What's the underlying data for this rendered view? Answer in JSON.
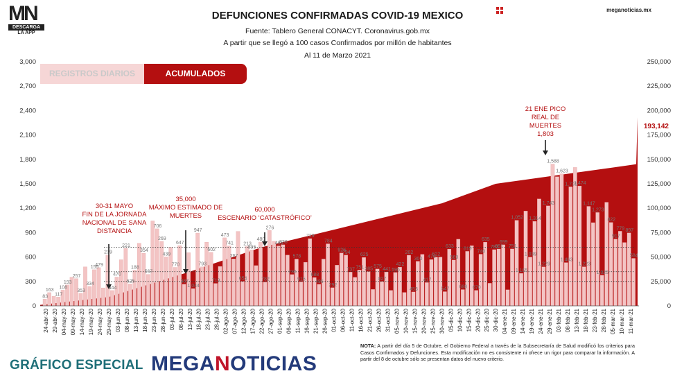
{
  "logo": {
    "mark_m": "M",
    "mark_n": "N",
    "sub": "DESCARGA",
    "app": "LA APP"
  },
  "site": "meganoticias.mx",
  "header": {
    "title": "DEFUNCIONES CONFIRMADAS COVID-19 MEXICO",
    "source": "Fuente: Tablero General CONACYT. Coronavirus.gob.mx",
    "criterion": "A partir que se llegó a 100 casos Confirmados por millón de habitantes",
    "date": "Al 11 de Marzo 2021"
  },
  "tabs": {
    "daily": "REGISTROS DIARIOS",
    "accumulated": "ACUMULADOS"
  },
  "colors": {
    "bars": "#f3c4c4",
    "bar_edge": "#e4a3a3",
    "accumulated": "#b40f10",
    "annotation": "#b40f10",
    "tab_daily_bg": "#f6d6d6"
  },
  "chart_data": {
    "type": "bar",
    "title": "DEFUNCIONES CONFIRMADAS COVID-19 MEXICO",
    "left_axis": {
      "ylim": [
        0,
        3000
      ],
      "ticks": [
        "0",
        "300",
        "600",
        "900",
        "1,200",
        "1,500",
        "1,800",
        "2,100",
        "2,400",
        "2,700",
        "3,000"
      ]
    },
    "right_axis": {
      "ylim": [
        0,
        250000
      ],
      "ticks": [
        "0",
        "25,000",
        "50,000",
        "75,000",
        "100,000",
        "125,000",
        "150,000",
        "175,000",
        "200,000",
        "225,000",
        "250,000"
      ]
    },
    "x_ticks": [
      "24-abr-20",
      "29-abr-20",
      "04-may-20",
      "09-may-20",
      "14-may-20",
      "19-may-20",
      "24-may-20",
      "29-may-20",
      "03-jun-20",
      "08-jun-20",
      "13-jun-20",
      "18-jun-20",
      "23-jun-20",
      "28-jun-20",
      "03-jul-20",
      "08-jul-20",
      "13-jul-20",
      "18-jul-20",
      "23-jul-20",
      "28-jul-20",
      "02-ago-20",
      "07-ago-20",
      "12-ago-20",
      "17-ago-20",
      "22-ago-20",
      "27-ago-20",
      "01-sep-20",
      "06-sep-20",
      "11-sep-20",
      "16-sep-20",
      "21-sep-20",
      "26-sep-20",
      "01-oct-20",
      "06-oct-20",
      "11-oct-20",
      "16-oct-20",
      "21-oct-20",
      "26-oct-20",
      "31-oct-20",
      "05-nov-20",
      "10-nov-20",
      "15-nov-20",
      "20-nov-20",
      "25-nov-20",
      "30-nov-20",
      "05-dic-20",
      "10-dic-20",
      "15-dic-20",
      "20-dic-20",
      "25-dic-20",
      "30-dic-20",
      "04-ene-21",
      "09-ene-21",
      "14-ene-21",
      "19-ene-21",
      "24-ene-21",
      "29-ene-21",
      "03-feb-21",
      "08-feb-21",
      "13-feb-21",
      "18-feb-21",
      "23-feb-21",
      "28-feb-21",
      "05-mar-21",
      "10-mar-21",
      "11-mar-21"
    ],
    "daily_series": {
      "name": "REGISTROS DIARIOS",
      "values": [
        83,
        163,
        117,
        108,
        193,
        257,
        353,
        334,
        155,
        479,
        239,
        444,
        470,
        221,
        625,
        188,
        354,
        567,
        706,
        269,
        439,
        770,
        647,
        387,
        1044,
        947,
        793,
        602,
        719,
        473,
        741,
        267,
        654,
        213,
        895,
        480,
        782,
        658,
        276,
        485,
        836,
        736,
        578,
        915,
        301,
        729,
        688,
        495,
        784,
        292,
        926,
        794,
        737,
        751,
        625,
        385,
        575,
        296,
        536,
        827,
        349,
        265,
        575,
        763,
        223,
        500,
        650,
        624,
        415,
        350,
        441,
        595,
        422,
        202,
        453,
        300,
        417,
        191,
        411,
        476,
        165,
        622,
        171,
        547,
        633,
        286,
        569,
        600,
        600,
        175,
        698,
        563,
        819,
        200,
        670,
        740,
        191,
        635,
        783,
        278,
        691,
        699,
        751,
        198,
        700,
        1052,
        400,
        1165,
        600,
        1039,
        1314,
        480,
        1229,
        1743,
        1588,
        1623,
        532,
        1463,
        1701,
        1474,
        481,
        1223,
        1023,
        1147,
        377,
        1273,
        1025,
        822,
        917,
        779,
        897,
        584
      ],
      "labels_shown": [
        "83",
        "163",
        "117",
        "108",
        "193",
        "257",
        "353",
        "334",
        "155",
        "479",
        "239",
        "444",
        "470",
        "221",
        "625",
        "188",
        "354",
        "567",
        "706",
        "269",
        "439",
        "770",
        "647",
        "387",
        "1,044",
        "947",
        "793",
        "602",
        "719",
        "473",
        "741",
        "267",
        "654",
        "213",
        "895",
        "480",
        "782",
        "276",
        "485",
        "836",
        "736",
        "578",
        "915",
        "729",
        "688",
        "495",
        "784",
        "292",
        "926",
        "794",
        "737",
        "751",
        "625",
        "385",
        "575",
        "827",
        "441",
        "595",
        "422",
        "202",
        "453",
        "300",
        "417",
        "476",
        "622",
        "547",
        "633",
        "569",
        "698",
        "819",
        "670",
        "740",
        "635",
        "783",
        "691",
        "699",
        "751",
        "1,052",
        "1,165",
        "1,039",
        "1,314",
        "1,229",
        "1,743",
        "1,588",
        "1,623",
        "1,463",
        "1,701",
        "1,474",
        "1,223",
        "1,147",
        "1,273",
        "1,025",
        "822",
        "917",
        "779",
        "897",
        "584"
      ]
    },
    "accumulated_series": {
      "name": "ACUMULADOS",
      "x_end": "11-mar-21",
      "start": 1000,
      "end": 193142,
      "end_label": "193,142",
      "checkpoints": [
        {
          "date": "29-may-20",
          "value": 9000
        },
        {
          "date": "13-jul-20",
          "value": 35000
        },
        {
          "date": "22-ago-20",
          "value": 60000
        },
        {
          "date": "01-oct-20",
          "value": 78000
        },
        {
          "date": "30-nov-20",
          "value": 105000
        },
        {
          "date": "30-dic-20",
          "value": 125000
        },
        {
          "date": "21-ene-21",
          "value": 145000
        },
        {
          "date": "11-mar-21",
          "value": 193142
        }
      ]
    },
    "reference_lines": [
      {
        "value": 25000
      },
      {
        "value": 35000
      },
      {
        "value": 60000
      }
    ],
    "annotations": [
      {
        "text_lines": [
          "30-31 MAYO",
          "FIN DE LA JORNADA",
          "NACIONAL DE SANA",
          "DISTANCIA"
        ],
        "x": "29-may-20"
      },
      {
        "text_lines": [
          "35,000",
          "MÁXIMO ESTIMADO DE",
          "MUERTES"
        ],
        "x": "10-jul-20"
      },
      {
        "text_lines": [
          "60,000",
          "ESCENARIO ‘CATASTRÓFICO’"
        ],
        "x": "22-ago-20"
      },
      {
        "text_lines": [
          "21 ENE PICO",
          "REAL DE",
          "MUERTES",
          "1,803"
        ],
        "x": "21-ene-21"
      }
    ]
  },
  "note": {
    "bold": "NOTA:",
    "text": " A partir del día 5 de Octubre, el Gobierno Federal a través de la Subsecretaría de Salud modificó los criterios para Casos Confirmados y Defunciones. Esta modificación no es consistente ni ofrece un rigor para comparar la información. A partir del 8 de octubre sólo se presentan datos del nuevo criterio."
  },
  "footer": {
    "left": "GRÁFICO ESPECIAL",
    "brand_a": "MEGA",
    "brand_hl": "N",
    "brand_b": "OTICIAS"
  }
}
